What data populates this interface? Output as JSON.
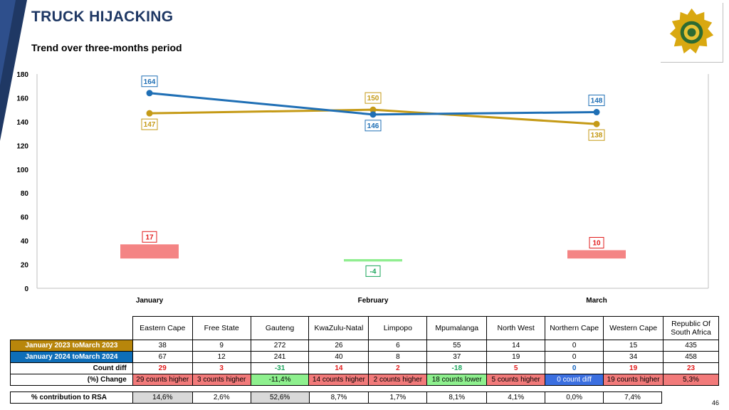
{
  "header": {
    "title": "TRUCK HIJACKING",
    "subtitle": "Trend over three-months period"
  },
  "chart_data": {
    "type": "line",
    "categories": [
      "January",
      "February",
      "March"
    ],
    "ylim": [
      0,
      180
    ],
    "yticks": [
      0,
      20,
      40,
      60,
      80,
      100,
      120,
      140,
      160,
      180
    ],
    "grid": false,
    "series": [
      {
        "values": [
          147,
          150,
          138
        ],
        "color": "#c59a16",
        "labels": [
          "147",
          "150",
          "138"
        ]
      },
      {
        "values": [
          164,
          146,
          148
        ],
        "color": "#1f6fb5",
        "labels": [
          "164",
          "146",
          "148"
        ]
      }
    ],
    "diff_bars": {
      "values": [
        17,
        -4,
        10
      ],
      "labels": [
        "17",
        "-4",
        "10"
      ],
      "positive_color": "#f48484",
      "negative_color": "#90ee90",
      "positive_text_color": "#e21c1c",
      "negative_text_color": "#19a45a"
    }
  },
  "table": {
    "provinces": [
      "Eastern Cape",
      "Free State",
      "Gauteng",
      "KwaZulu-Natal",
      "Limpopo",
      "Mpumalanga",
      "North West",
      "Northern Cape",
      "Western Cape"
    ],
    "rsa_header_line1": "Republic Of",
    "rsa_header_line2": "South Africa",
    "rows": [
      {
        "label": "January 2023 toMarch 2023",
        "values": [
          "38",
          "9",
          "272",
          "26",
          "6",
          "55",
          "14",
          "0",
          "15",
          "435"
        ]
      },
      {
        "label": "January 2024 toMarch 2024",
        "values": [
          "67",
          "12",
          "241",
          "40",
          "8",
          "37",
          "19",
          "0",
          "34",
          "458"
        ]
      },
      {
        "label": "Count diff",
        "values": [
          "29",
          "3",
          "-31",
          "14",
          "2",
          "-18",
          "5",
          "0",
          "19",
          "23"
        ]
      },
      {
        "label": "(%) Change",
        "values": [
          "29 counts higher",
          "3 counts higher",
          "-11,4%",
          "14 counts higher",
          "2 counts higher",
          "18 counts lower",
          "5 counts higher",
          "0 count diff",
          "19 counts higher",
          "5,3%"
        ]
      }
    ],
    "contribution": {
      "label": "% contribution to RSA",
      "values": [
        "14,6%",
        "2,6%",
        "52,6%",
        "8,7%",
        "1,7%",
        "8,1%",
        "4,1%",
        "0,0%",
        "7,4%"
      ]
    }
  },
  "page_number": "46"
}
